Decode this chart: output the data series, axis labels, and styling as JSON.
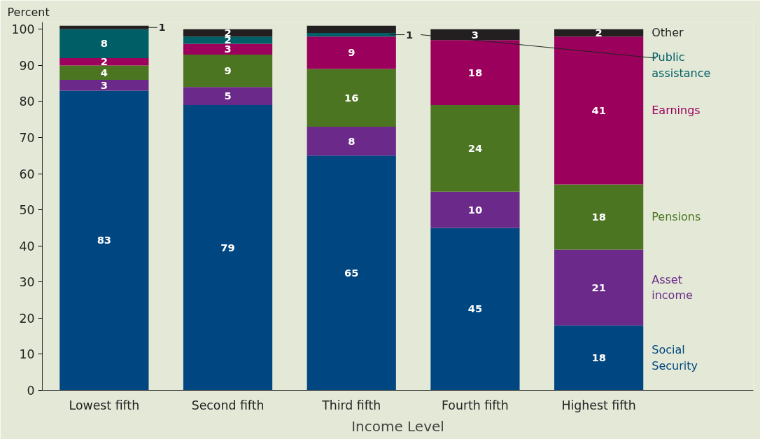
{
  "chart_data": {
    "type": "bar",
    "stacked": true,
    "ylabel": "Percent",
    "xlabel": "Income Level",
    "categories": [
      "Lowest fifth",
      "Second fifth",
      "Third fifth",
      "Fourth fifth",
      "Highest fifth"
    ],
    "series": [
      {
        "name": "Social Security",
        "color": "#004680",
        "values": [
          83,
          79,
          65,
          45,
          18
        ]
      },
      {
        "name": "Asset income",
        "color": "#6b2a8a",
        "values": [
          3,
          5,
          8,
          10,
          21
        ]
      },
      {
        "name": "Pensions",
        "color": "#4b7520",
        "values": [
          4,
          9,
          16,
          24,
          18
        ]
      },
      {
        "name": "Earnings",
        "color": "#9b005d",
        "values": [
          2,
          3,
          9,
          18,
          41
        ]
      },
      {
        "name": "Public assistance",
        "color": "#005f66",
        "values": [
          8,
          2,
          1,
          0,
          0
        ],
        "value_labels": [
          "8",
          "2",
          "1",
          null,
          null
        ]
      },
      {
        "name": "Other",
        "color": "#231f20",
        "values": [
          1,
          2,
          2,
          3,
          2
        ],
        "value_labels": [
          "1",
          "2",
          null,
          "3",
          "2"
        ]
      }
    ],
    "data_labels": true,
    "ylim": [
      0,
      102
    ],
    "yticks": [
      0,
      10,
      20,
      30,
      40,
      50,
      60,
      70,
      80,
      90,
      100
    ],
    "grid": false,
    "legend": "right"
  }
}
